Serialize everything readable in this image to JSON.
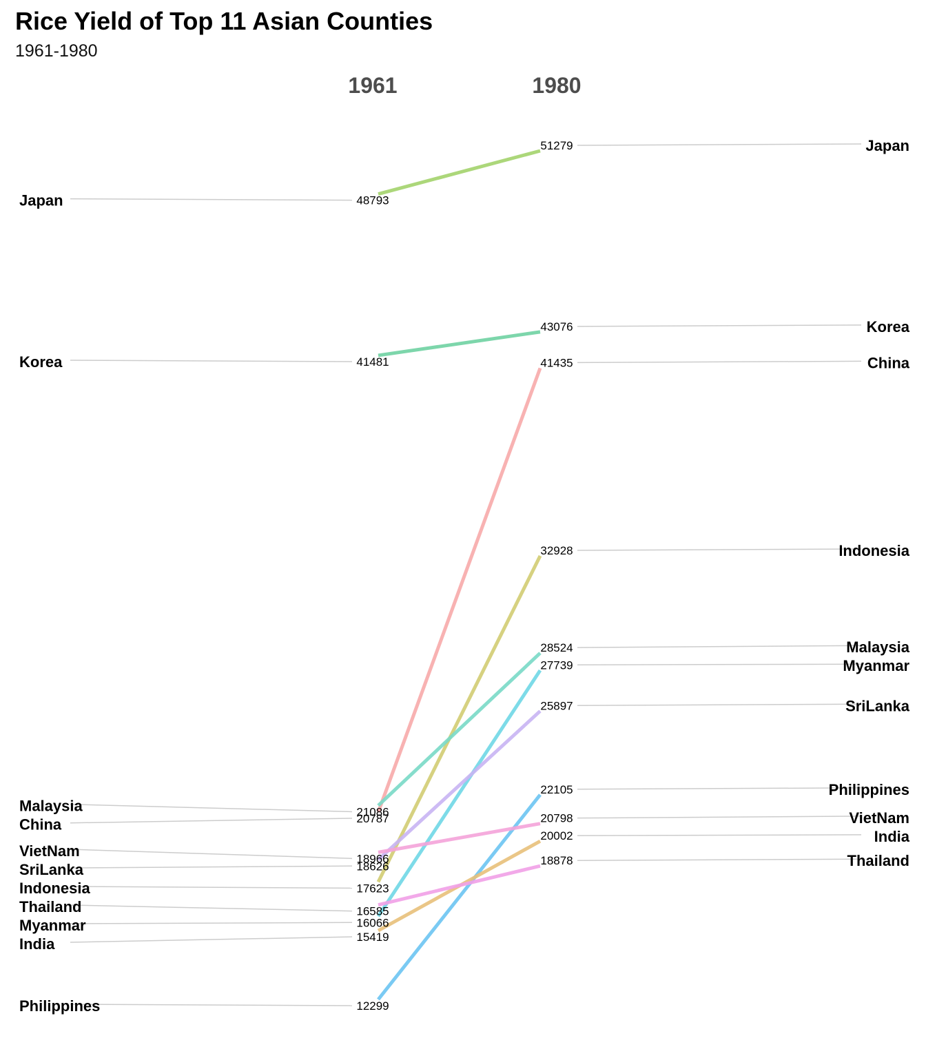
{
  "title": "Rice Yield of Top 11 Asian Counties",
  "subtitle": "1961-1980",
  "chart_data": {
    "type": "line",
    "title": "Rice Yield of Top 11 Asian Counties",
    "subtitle": "1961-1980",
    "x": [
      "1961",
      "1980"
    ],
    "grid": false,
    "legend": "none",
    "series": [
      {
        "name": "Japan",
        "values": [
          48793,
          51279
        ],
        "color": "#a3d36b"
      },
      {
        "name": "Korea",
        "values": [
          41481,
          43076
        ],
        "color": "#6fd2a2"
      },
      {
        "name": "China",
        "values": [
          20787,
          41435
        ],
        "color": "#f7aaaa"
      },
      {
        "name": "Indonesia",
        "values": [
          17623,
          32928
        ],
        "color": "#d2cc72"
      },
      {
        "name": "Malaysia",
        "values": [
          21086,
          28524
        ],
        "color": "#79d9c6"
      },
      {
        "name": "Myanmar",
        "values": [
          16066,
          27739
        ],
        "color": "#6fd7e6"
      },
      {
        "name": "SriLanka",
        "values": [
          18626,
          25897
        ],
        "color": "#c8b4f3"
      },
      {
        "name": "Philippines",
        "values": [
          12299,
          22105
        ],
        "color": "#6cc4f2"
      },
      {
        "name": "VietNam",
        "values": [
          18966,
          20798
        ],
        "color": "#f4a3d9"
      },
      {
        "name": "India",
        "values": [
          15419,
          20002
        ],
        "color": "#e8c07a"
      },
      {
        "name": "Thailand",
        "values": [
          16585,
          18878
        ],
        "color": "#f1a0e7"
      }
    ]
  }
}
